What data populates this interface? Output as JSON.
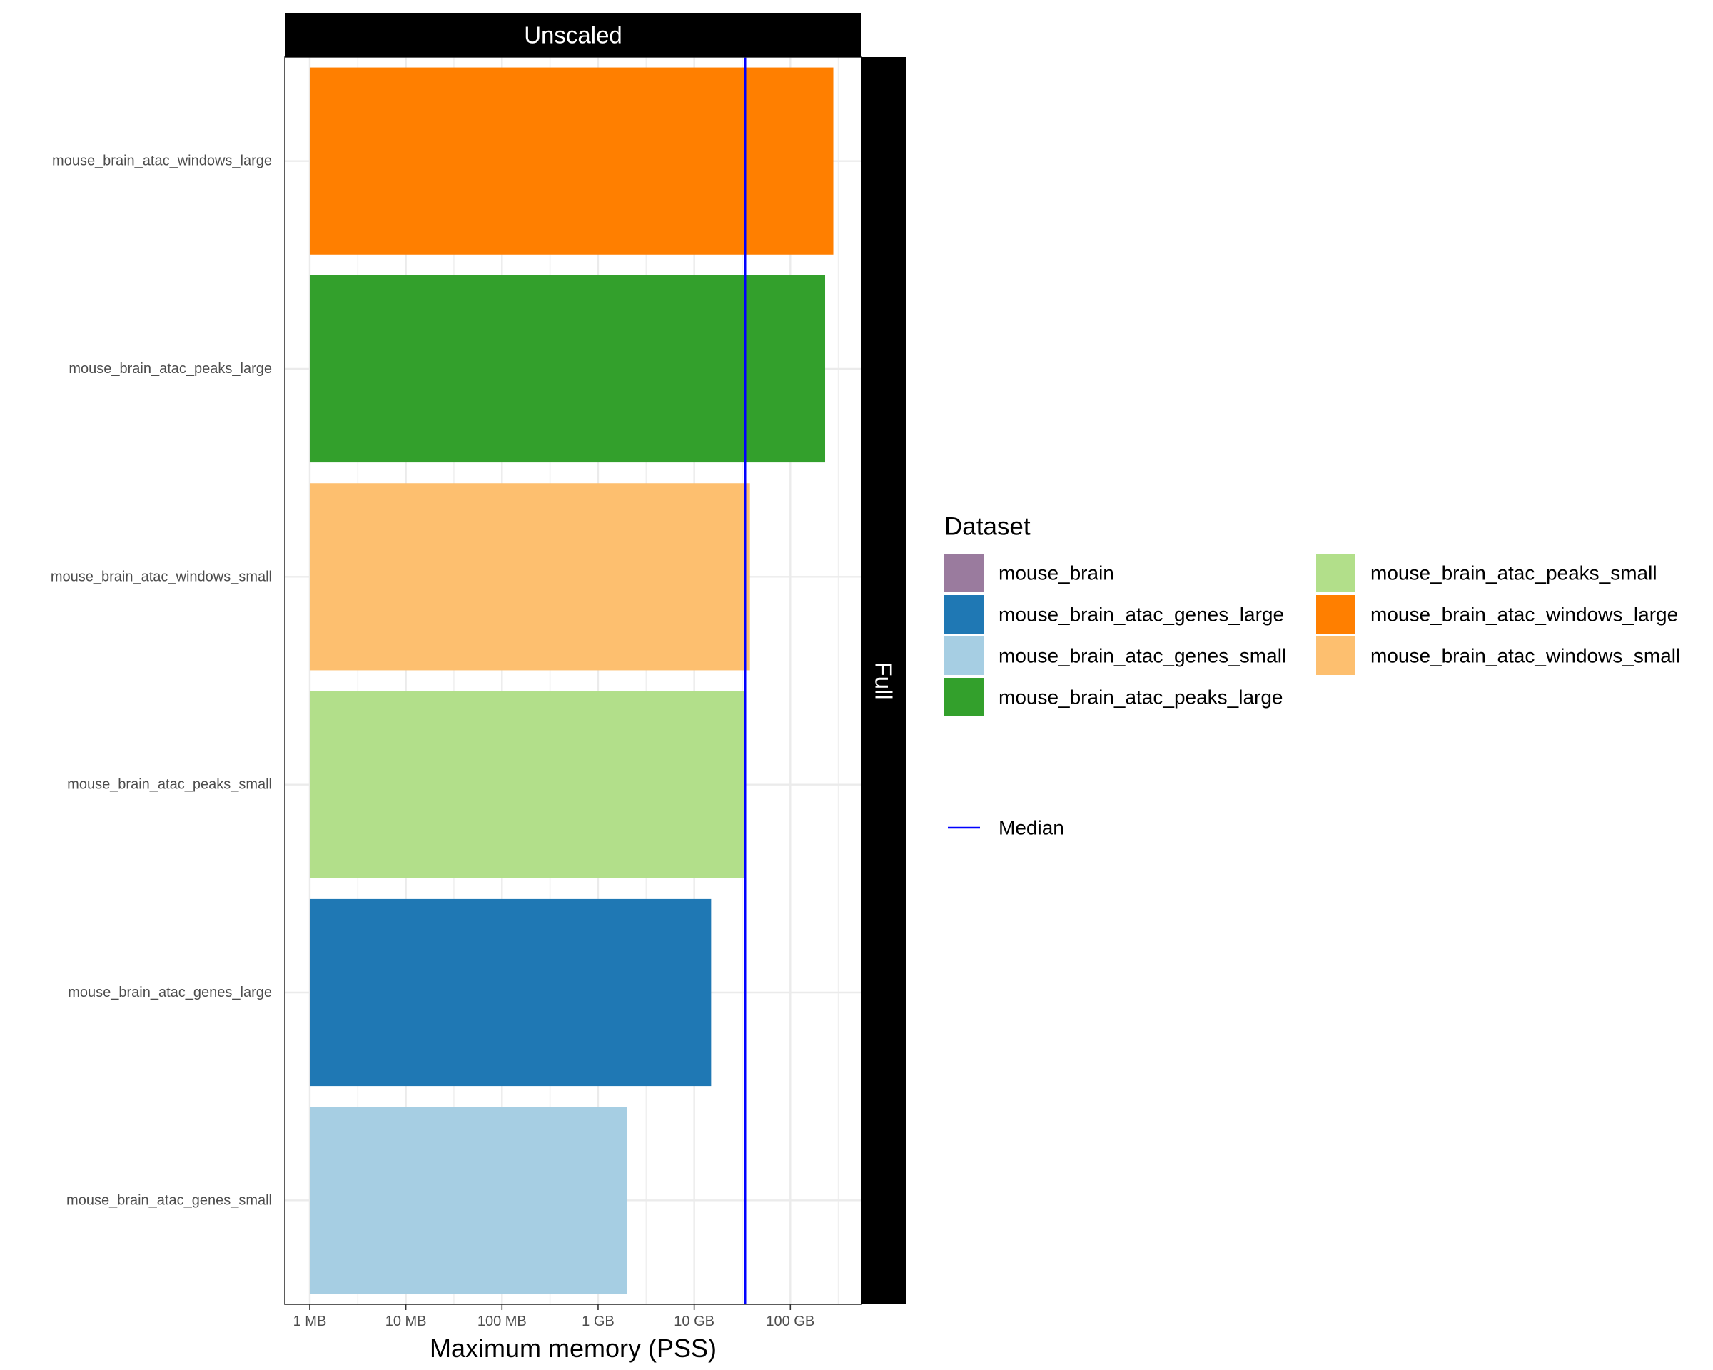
{
  "chart_data": {
    "type": "bar",
    "orientation": "horizontal",
    "facet_top_label": "Unscaled",
    "facet_right_label": "Full",
    "xlabel": "Maximum memory (PSS)",
    "ylabel": "",
    "x_scale": "log10",
    "x_unit": "MB",
    "xlim_mb": [
      0.55,
      550000
    ],
    "x_ticks": [
      {
        "value_mb": 1,
        "label": "1 MB"
      },
      {
        "value_mb": 10,
        "label": "10 MB"
      },
      {
        "value_mb": 100,
        "label": "100 MB"
      },
      {
        "value_mb": 1000,
        "label": "1 GB"
      },
      {
        "value_mb": 10000,
        "label": "10 GB"
      },
      {
        "value_mb": 100000,
        "label": "100 GB"
      }
    ],
    "categories": [
      "mouse_brain_atac_windows_large",
      "mouse_brain_atac_peaks_large",
      "mouse_brain_atac_windows_small",
      "mouse_brain_atac_peaks_small",
      "mouse_brain_atac_genes_large",
      "mouse_brain_atac_genes_small"
    ],
    "values_mb": [
      280000,
      230000,
      38000,
      34000,
      15000,
      2000
    ],
    "colors": [
      "#FF7F00",
      "#33A02C",
      "#FDBF6F",
      "#B2DF8A",
      "#1F78B4",
      "#A6CEE3"
    ],
    "median_mb": 34000,
    "median_color": "#0000FF",
    "grid": true,
    "legend": {
      "title": "Dataset",
      "placement": "right",
      "entries": [
        {
          "label": "mouse_brain",
          "color": "#9A7B9E"
        },
        {
          "label": "mouse_brain_atac_genes_large",
          "color": "#1F78B4"
        },
        {
          "label": "mouse_brain_atac_genes_small",
          "color": "#A6CEE3"
        },
        {
          "label": "mouse_brain_atac_peaks_large",
          "color": "#33A02C"
        },
        {
          "label": "mouse_brain_atac_peaks_small",
          "color": "#B2DF8A"
        },
        {
          "label": "mouse_brain_atac_windows_large",
          "color": "#FF7F00"
        },
        {
          "label": "mouse_brain_atac_windows_small",
          "color": "#FDBF6F"
        }
      ],
      "median_label": "Median"
    }
  }
}
